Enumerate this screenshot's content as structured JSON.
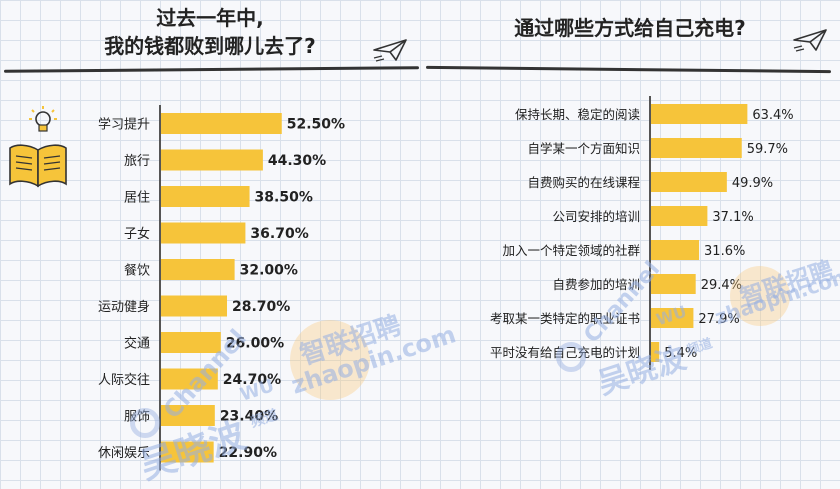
{
  "left": {
    "title_line1": "过去一年中,",
    "title_line2": "我的钱都败到哪儿去了?"
  },
  "right": {
    "title": "通过哪些方式给自己充电?"
  },
  "watermarks": {
    "channel": "Channel",
    "wu": "WU",
    "cn_name": "吴晓波",
    "pindao": "频道",
    "zhilian": "智联招聘",
    "zhaopin": "zhaopin.com"
  },
  "colors": {
    "bar": "#f6c43a",
    "axis": "#555555",
    "text": "#222222"
  },
  "chart_data": [
    {
      "type": "bar",
      "orientation": "horizontal",
      "title": "过去一年中,我的钱都败到哪儿去了?",
      "categories": [
        "学习提升",
        "旅行",
        "居住",
        "子女",
        "餐饮",
        "运动健身",
        "交通",
        "人际交往",
        "服饰",
        "休闲娱乐"
      ],
      "values": [
        52.5,
        44.3,
        38.5,
        36.7,
        32.0,
        28.7,
        26.0,
        24.7,
        23.4,
        22.9
      ],
      "value_labels": [
        "52.50%",
        "44.30%",
        "38.50%",
        "36.70%",
        "32.00%",
        "28.70%",
        "26.00%",
        "24.70%",
        "23.40%",
        "22.90%"
      ],
      "xlim": [
        0,
        100
      ]
    },
    {
      "type": "bar",
      "orientation": "horizontal",
      "title": "通过哪些方式给自己充电?",
      "categories": [
        "保持长期、稳定的阅读",
        "自学某一个方面知识",
        "自费购买的在线课程",
        "公司安排的培训",
        "加入一个特定领域的社群",
        "自费参加的培训",
        "考取某一类特定的职业证书",
        "平时没有给自己充电的计划"
      ],
      "values": [
        63.4,
        59.7,
        49.9,
        37.1,
        31.6,
        29.4,
        27.9,
        5.4
      ],
      "value_labels": [
        "63.4%",
        "59.7%",
        "49.9%",
        "37.1%",
        "31.6%",
        "29.4%",
        "27.9%",
        "5.4%"
      ],
      "xlim": [
        0,
        100
      ]
    }
  ]
}
